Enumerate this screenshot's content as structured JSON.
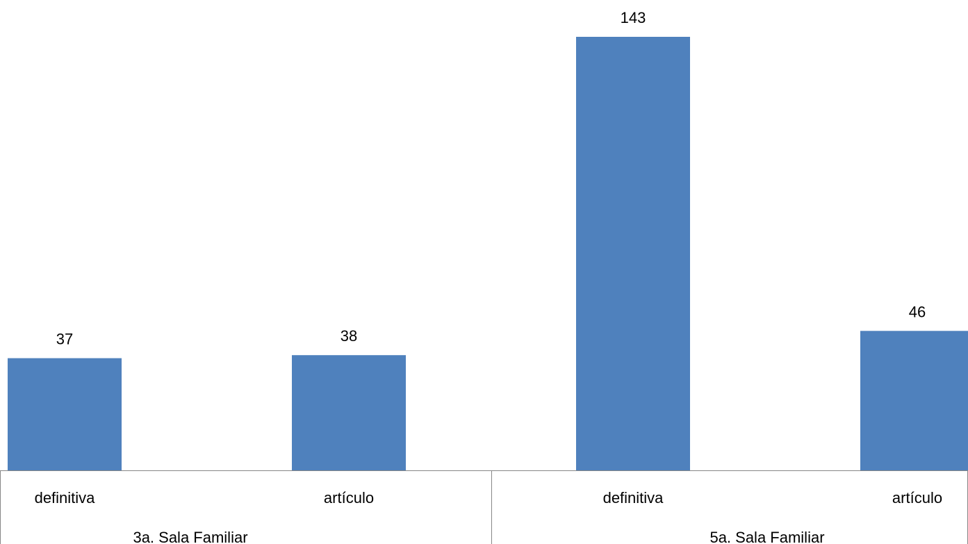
{
  "chart_data": {
    "type": "bar",
    "title": "",
    "xlabel": "",
    "ylabel": "",
    "ylim": [
      0,
      143
    ],
    "grid": false,
    "legend": "none",
    "color": "#4f81bd",
    "groups": [
      {
        "label": "3a. Sala Familiar",
        "categories": [
          "definitiva",
          "artículo"
        ],
        "values": [
          37,
          38
        ]
      },
      {
        "label": "5a. Sala Familiar",
        "categories": [
          "definitiva",
          "artículo"
        ],
        "values": [
          143,
          46
        ]
      }
    ],
    "categories": [
      "definitiva",
      "artículo",
      "definitiva",
      "artículo"
    ],
    "values": [
      37,
      38,
      143,
      46
    ]
  }
}
